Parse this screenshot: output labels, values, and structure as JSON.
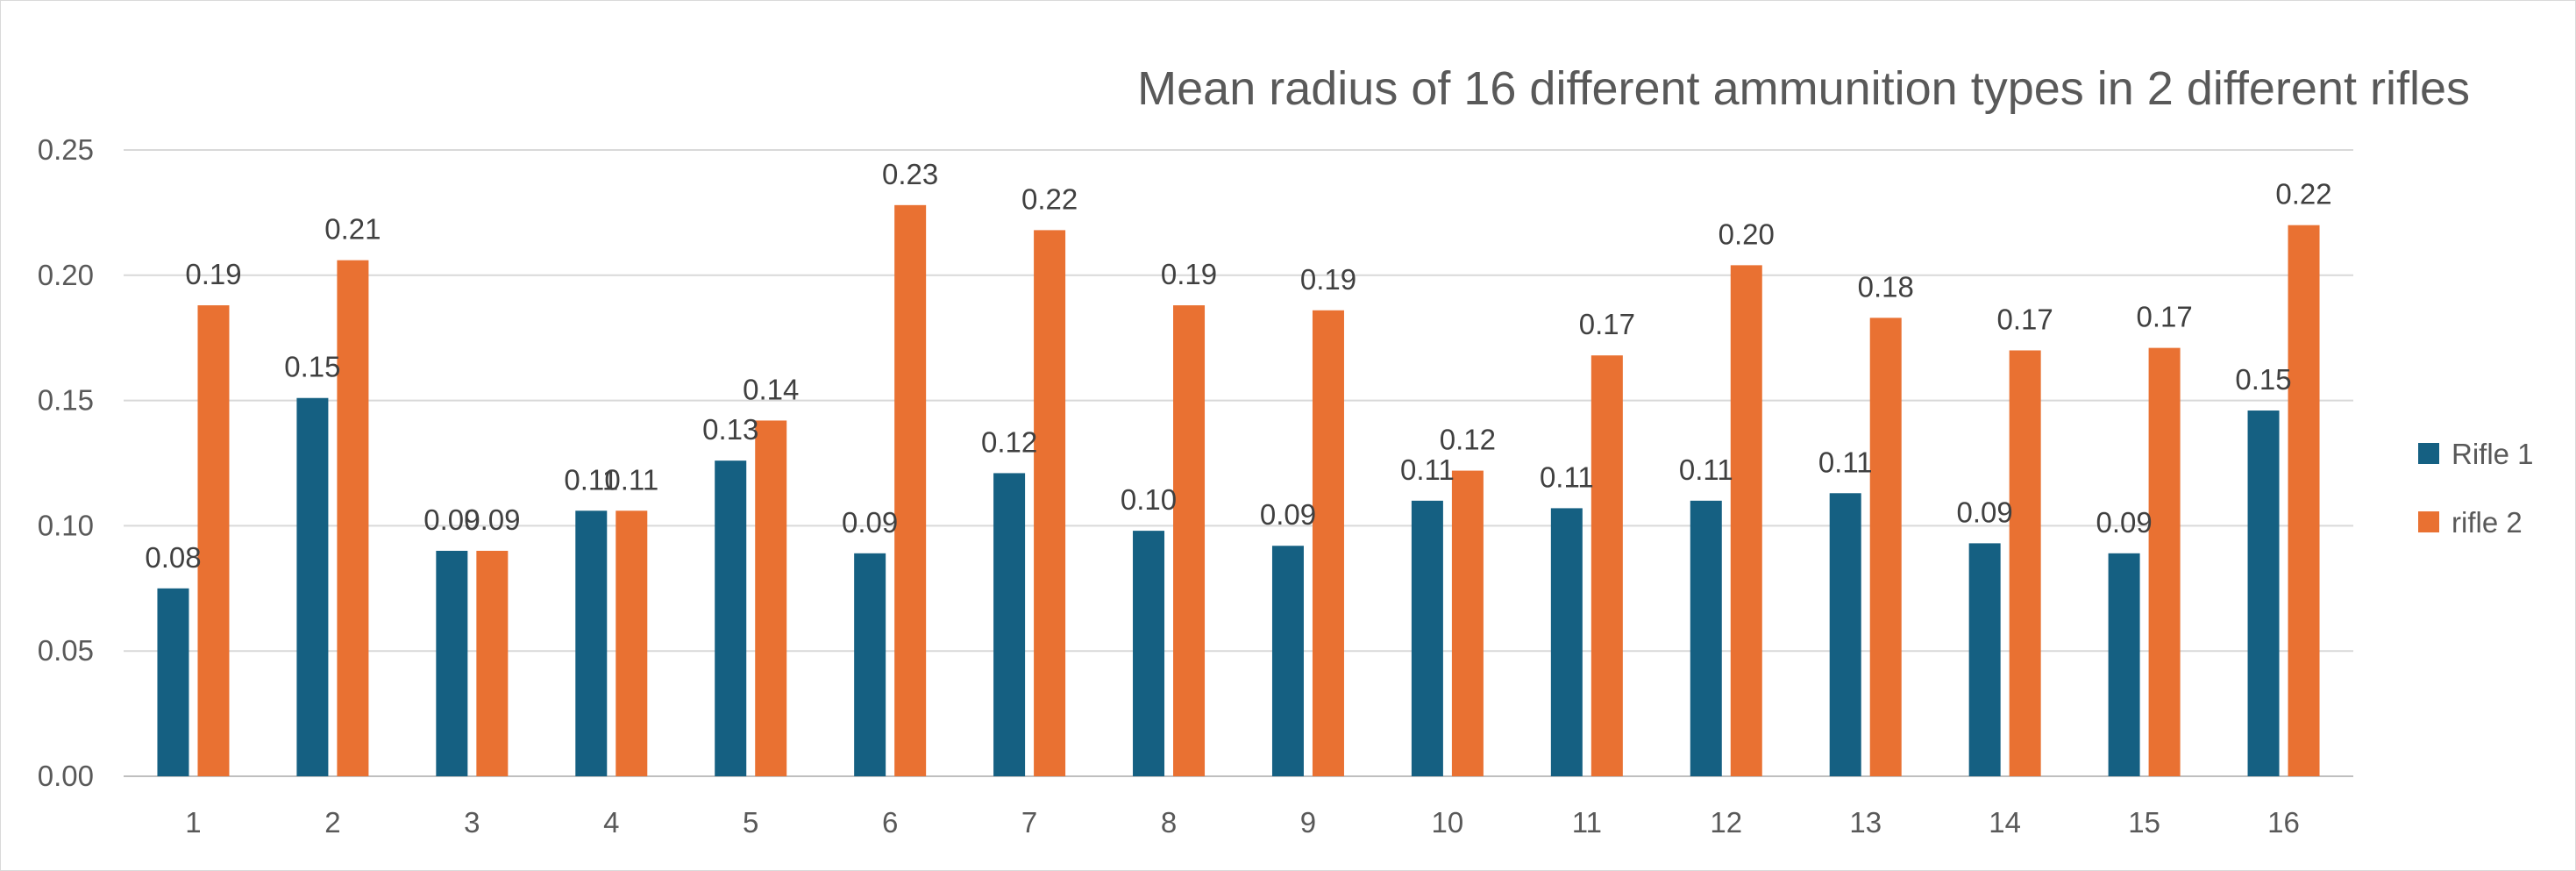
{
  "chart_data": {
    "type": "bar",
    "title": "Mean radius of 16 different ammunition types in 2 different rifles",
    "xlabel": "",
    "ylabel": "",
    "categories": [
      "1",
      "2",
      "3",
      "4",
      "5",
      "6",
      "7",
      "8",
      "9",
      "10",
      "11",
      "12",
      "13",
      "14",
      "15",
      "16"
    ],
    "series": [
      {
        "name": "Rifle 1",
        "color": "#156082",
        "values": [
          0.075,
          0.151,
          0.09,
          0.106,
          0.126,
          0.089,
          0.121,
          0.098,
          0.092,
          0.11,
          0.107,
          0.11,
          0.113,
          0.093,
          0.089,
          0.146
        ],
        "labels": [
          "0.08",
          "0.15",
          "0.09",
          "0.11",
          "0.13",
          "0.09",
          "0.12",
          "0.10",
          "0.09",
          "0.11",
          "0.11",
          "0.11",
          "0.11",
          "0.09",
          "0.09",
          "0.15"
        ]
      },
      {
        "name": "rifle 2",
        "color": "#E97132",
        "values": [
          0.188,
          0.206,
          0.09,
          0.106,
          0.142,
          0.228,
          0.218,
          0.188,
          0.186,
          0.122,
          0.168,
          0.204,
          0.183,
          0.17,
          0.171,
          0.22
        ],
        "labels": [
          "0.19",
          "0.21",
          "0.09",
          "0.11",
          "0.14",
          "0.23",
          "0.22",
          "0.19",
          "0.19",
          "0.12",
          "0.17",
          "0.20",
          "0.18",
          "0.17",
          "0.17",
          "0.22"
        ]
      }
    ],
    "ylim": [
      0,
      0.25
    ],
    "yticks": [
      "0.00",
      "0.05",
      "0.10",
      "0.15",
      "0.20",
      "0.25"
    ],
    "grid": true,
    "legend": "right"
  }
}
